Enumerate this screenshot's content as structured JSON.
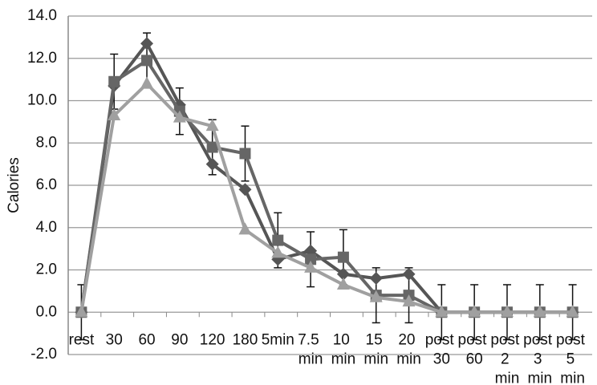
{
  "chart_data": {
    "type": "line",
    "y_label": "Calories",
    "categories": [
      "rest",
      "30",
      "60",
      "90",
      "120",
      "180",
      "5min",
      "7.5 min",
      "10 min",
      "15 min",
      "20 min",
      "post 30",
      "post 60",
      "post 2 min",
      "post 3 min",
      "post 5 min"
    ],
    "series": [
      {
        "color": "#555555",
        "marker": "diamond",
        "values": [
          0,
          10.7,
          12.7,
          9.8,
          7.0,
          5.8,
          2.5,
          2.9,
          1.8,
          1.6,
          1.8,
          0,
          0,
          0,
          0,
          0
        ]
      },
      {
        "color": "#666666",
        "marker": "square",
        "values": [
          0,
          10.9,
          11.9,
          9.5,
          7.8,
          7.5,
          3.4,
          2.5,
          2.6,
          0.8,
          0.8,
          0,
          0,
          0,
          0,
          0
        ],
        "errors": [
          1.3,
          1.3,
          1.3,
          1.1,
          1.3,
          1.3,
          1.3,
          1.3,
          1.3,
          1.3,
          1.3,
          1.3,
          1.3,
          1.3,
          1.3,
          1.3
        ]
      },
      {
        "color": "#a0a0a0",
        "marker": "triangle",
        "values": [
          0,
          9.3,
          10.8,
          9.2,
          8.8,
          3.9,
          2.8,
          2.1,
          1.3,
          0.7,
          0.5,
          0,
          0,
          0,
          0,
          0
        ]
      }
    ],
    "ylim": [
      -2,
      14
    ],
    "yticks": [
      {
        "value": -2,
        "label": "-2.0"
      },
      {
        "value": 0,
        "label": "0.0"
      },
      {
        "value": 2,
        "label": "2.0"
      },
      {
        "value": 4,
        "label": "4.0"
      },
      {
        "value": 6,
        "label": "6.0"
      },
      {
        "value": 8,
        "label": "8.0"
      },
      {
        "value": 10,
        "label": "10.0"
      },
      {
        "value": 12,
        "label": "12.0"
      },
      {
        "value": 14,
        "label": "14.0"
      }
    ],
    "grid": true
  }
}
